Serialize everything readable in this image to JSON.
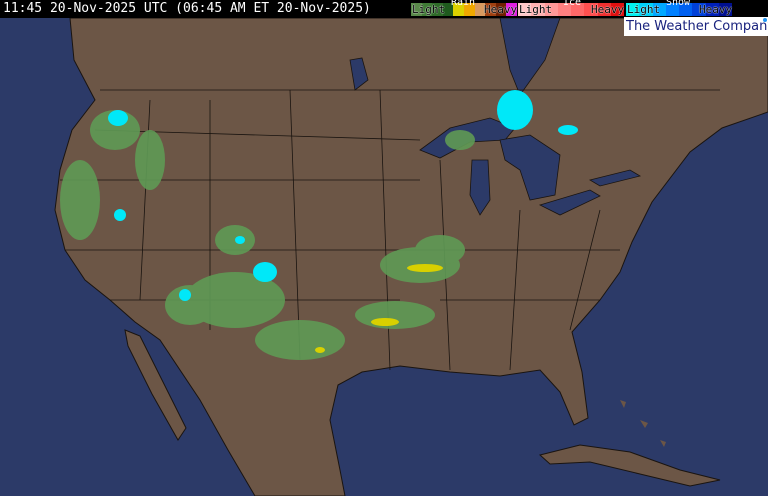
{
  "header": {
    "timestamp": "11:45 20-Nov-2025 UTC  (06:45 AM ET 20-Nov-2025)"
  },
  "legend": {
    "rain": {
      "title": "Rain",
      "light": "Light",
      "heavy": "Heavy",
      "colors": [
        "#5a8a4a",
        "#3f7a35",
        "#2e6a28",
        "#1f5a1e",
        "#dcd200",
        "#f0a800",
        "#d89a60",
        "#a04010",
        "#702000",
        "#e020e0"
      ]
    },
    "ice": {
      "title": "Ice",
      "light": "Light",
      "heavy": "Heavy",
      "colors": [
        "#ffc8c8",
        "#ffb0b0",
        "#ff9898",
        "#ff8080",
        "#ff6868",
        "#ff5050",
        "#f03030",
        "#e01010"
      ]
    },
    "snow": {
      "title": "Snow",
      "light": "Light",
      "heavy": "Heavy",
      "colors": [
        "#00f0f0",
        "#00d0f8",
        "#00a8ff",
        "#0080ff",
        "#0060f0",
        "#0040d8",
        "#0020b8",
        "#001090"
      ]
    }
  },
  "brand": "The Weather Company",
  "colors": {
    "ocean": "#2c3a68",
    "land": "#6c5646",
    "border": "#1a1410",
    "rain_light": "#5f9a55",
    "snow_light": "#00e8f8",
    "mixed": "#d8d000"
  }
}
